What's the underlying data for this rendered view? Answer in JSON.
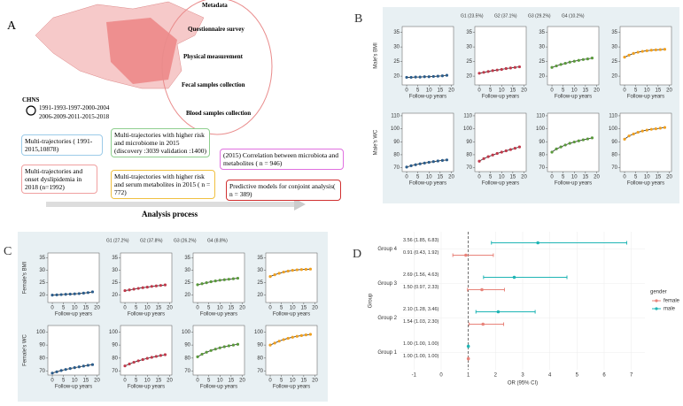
{
  "panelA": {
    "label": "A",
    "metadata_title": "Metadata",
    "items": [
      "Questionnaire survey",
      "Physical measurement",
      "Fecal samples collection",
      "Blood samples collection"
    ],
    "chns": "CHNS",
    "years": [
      "1991-1993-1997-2000-2004",
      "2006-2009-2011-2015-2018"
    ],
    "boxes": [
      "Multi-trajectories ( 1991-2015,10878)",
      "Multi-trajectories and onset dyslipidemia in 2018 (n=1992)",
      "Multi-trajectories with higher risk and microbiome in 2015 (discovery :3039 validation :1400)",
      "Multi-trajectories with higher risk and serum metabolites in 2015 ( n = 772)",
      "(2015) Correlation between microbiota and metabolites ( n = 946)",
      "Predictive models for conjoint analysis( n = 389)"
    ],
    "process": "Analysis process"
  },
  "chart_data": [
    {
      "type": "trajectory",
      "label": "B",
      "legend": [
        "G1 (23.5%)",
        "G2 (37.1%)",
        "G3 (29.2%)",
        "G4 (10.2%)"
      ],
      "colors": [
        "#2b5d8c",
        "#c0394b",
        "#5a9a3c",
        "#f0a020"
      ],
      "xlabel": "Follow-up years",
      "x": [
        0,
        2,
        4,
        6,
        8,
        10,
        12,
        14,
        16,
        18
      ],
      "xlim": [
        -2,
        21
      ],
      "xticks": [
        0,
        5,
        10,
        15,
        20
      ],
      "rows": [
        {
          "ylabel": "Male's BMI",
          "ylim": [
            17,
            37
          ],
          "yticks": [
            20,
            25,
            30,
            35
          ],
          "series": [
            [
              19.6,
              19.6,
              19.7,
              19.7,
              19.8,
              19.8,
              19.9,
              20.0,
              20.1,
              20.3
            ],
            [
              21.0,
              21.3,
              21.6,
              21.9,
              22.1,
              22.3,
              22.6,
              22.8,
              23.0,
              23.2
            ],
            [
              23.0,
              23.5,
              24.0,
              24.4,
              24.8,
              25.1,
              25.4,
              25.7,
              25.9,
              26.2
            ],
            [
              26.5,
              27.2,
              27.8,
              28.2,
              28.5,
              28.7,
              28.9,
              29.0,
              29.1,
              29.2
            ]
          ]
        },
        {
          "ylabel": "Male's WC",
          "ylim": [
            67,
            112
          ],
          "yticks": [
            70,
            80,
            90,
            100,
            110
          ],
          "series": [
            [
              70.5,
              71.5,
              72.3,
              73.0,
              73.6,
              74.2,
              74.7,
              75.2,
              75.6,
              76.0
            ],
            [
              75.0,
              77.0,
              78.5,
              79.8,
              81.0,
              82.0,
              83.0,
              84.0,
              85.0,
              86.0
            ],
            [
              82.0,
              84.5,
              86.0,
              87.5,
              88.8,
              89.8,
              90.7,
              91.5,
              92.2,
              93.0
            ],
            [
              92.0,
              94.5,
              96.0,
              97.3,
              98.3,
              99.0,
              99.6,
              100.0,
              100.5,
              101.0
            ]
          ]
        }
      ]
    },
    {
      "type": "trajectory",
      "label": "C",
      "legend": [
        "G1 (27.2%)",
        "G2 (37.8%)",
        "G3 (26.2%)",
        "G4 (8.8%)"
      ],
      "colors": [
        "#2b5d8c",
        "#c0394b",
        "#5a9a3c",
        "#f0a020"
      ],
      "xlabel": "Follow-up years",
      "x": [
        0,
        2,
        4,
        6,
        8,
        10,
        12,
        14,
        16,
        18
      ],
      "xlim": [
        -2,
        21
      ],
      "xticks": [
        0,
        5,
        10,
        15,
        20
      ],
      "rows": [
        {
          "ylabel": "Female's BMI",
          "ylim": [
            17,
            37
          ],
          "yticks": [
            20,
            25,
            30,
            35
          ],
          "series": [
            [
              20.0,
              20.1,
              20.2,
              20.3,
              20.4,
              20.5,
              20.6,
              20.8,
              21.0,
              21.3
            ],
            [
              21.8,
              22.1,
              22.4,
              22.7,
              23.0,
              23.2,
              23.5,
              23.7,
              23.9,
              24.1
            ],
            [
              24.2,
              24.6,
              25.0,
              25.4,
              25.7,
              26.0,
              26.2,
              26.4,
              26.6,
              26.8
            ],
            [
              27.5,
              28.2,
              28.8,
              29.3,
              29.7,
              30.0,
              30.2,
              30.3,
              30.4,
              30.5
            ]
          ]
        },
        {
          "ylabel": "Female's WC",
          "ylim": [
            67,
            105
          ],
          "yticks": [
            70,
            80,
            90,
            100
          ],
          "series": [
            [
              68.5,
              69.5,
              70.5,
              71.3,
              72.0,
              72.7,
              73.3,
              73.9,
              74.5,
              75.0
            ],
            [
              74.0,
              75.5,
              76.8,
              77.9,
              78.9,
              79.8,
              80.6,
              81.3,
              82.0,
              82.6
            ],
            [
              81.0,
              83.0,
              84.5,
              85.8,
              86.9,
              87.9,
              88.7,
              89.4,
              90.0,
              90.6
            ],
            [
              90.0,
              91.5,
              93.0,
              94.2,
              95.2,
              96.0,
              96.7,
              97.3,
              97.8,
              98.2
            ]
          ]
        }
      ]
    },
    {
      "type": "forest",
      "label": "D",
      "categories": [
        "Group 1",
        "Group 2",
        "Group 3",
        "Group 4"
      ],
      "xlabel": "OR (95% CI)",
      "ylabel": "Group",
      "xlim": [
        -1.5,
        7.5
      ],
      "xticks": [
        -1,
        0,
        1,
        2,
        3,
        4,
        5,
        6,
        7
      ],
      "ref": 1,
      "legend_title": "gender",
      "series": [
        {
          "name": "female",
          "color": "#e8837a",
          "values": [
            1.0,
            1.54,
            1.5,
            0.91
          ],
          "lo": [
            1.0,
            1.03,
            0.97,
            0.43
          ],
          "hi": [
            1.0,
            2.3,
            2.33,
            1.92
          ],
          "value_labels": [
            "1.00 (1.00, 1.00)",
            "1.54 (1.03, 2.30)",
            "1.50 (0.97, 2.33)",
            "0.91 (0.43, 1.92)"
          ]
        },
        {
          "name": "male",
          "color": "#1fb5b5",
          "values": [
            1.0,
            2.1,
            2.69,
            3.56
          ],
          "lo": [
            1.0,
            1.28,
            1.56,
            1.85
          ],
          "hi": [
            1.0,
            3.46,
            4.63,
            6.83
          ],
          "value_labels": [
            "1.00 (1.00, 1.00)",
            "2.10 (1.28, 3.46)",
            "2.69 (1.56, 4.63)",
            "3.56 (1.85, 6.83)"
          ]
        }
      ]
    }
  ]
}
